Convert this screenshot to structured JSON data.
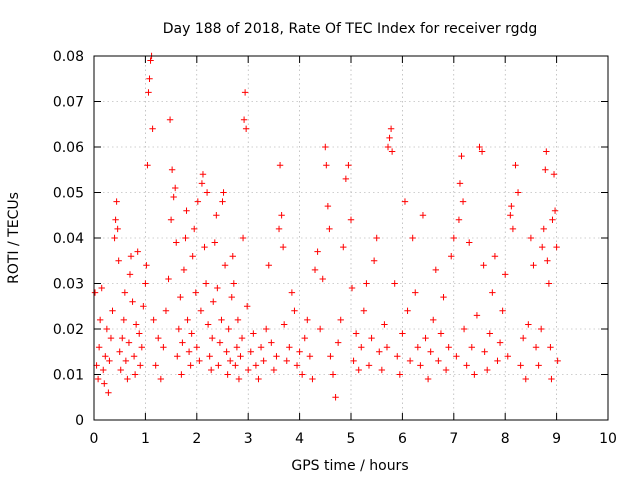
{
  "chart_data": {
    "type": "scatter",
    "title": "Day 188 of 2018, Rate Of TEC Index for receiver rgdg",
    "xlabel": "GPS time / hours",
    "ylabel": "ROTI / TECUs",
    "xlim": [
      0,
      10
    ],
    "ylim": [
      0,
      0.08
    ],
    "x_ticks": [
      0,
      1,
      2,
      3,
      4,
      5,
      6,
      7,
      8,
      9,
      10
    ],
    "y_ticks": [
      "0",
      "0.01",
      "0.02",
      "0.03",
      "0.04",
      "0.05",
      "0.06",
      "0.07",
      "0.08"
    ],
    "grid": true,
    "marker": "+",
    "color": "#ff0000",
    "series": [
      {
        "name": "ROTI",
        "points": [
          [
            0.02,
            0.028
          ],
          [
            0.05,
            0.012
          ],
          [
            0.08,
            0.009
          ],
          [
            0.1,
            0.016
          ],
          [
            0.12,
            0.022
          ],
          [
            0.15,
            0.029
          ],
          [
            0.18,
            0.011
          ],
          [
            0.2,
            0.008
          ],
          [
            0.22,
            0.014
          ],
          [
            0.25,
            0.02
          ],
          [
            0.28,
            0.006
          ],
          [
            0.3,
            0.013
          ],
          [
            0.33,
            0.018
          ],
          [
            0.36,
            0.024
          ],
          [
            0.4,
            0.04
          ],
          [
            0.42,
            0.044
          ],
          [
            0.44,
            0.048
          ],
          [
            0.46,
            0.042
          ],
          [
            0.48,
            0.035
          ],
          [
            0.5,
            0.015
          ],
          [
            0.52,
            0.011
          ],
          [
            0.55,
            0.018
          ],
          [
            0.58,
            0.022
          ],
          [
            0.6,
            0.028
          ],
          [
            0.62,
            0.013
          ],
          [
            0.65,
            0.009
          ],
          [
            0.68,
            0.017
          ],
          [
            0.7,
            0.032
          ],
          [
            0.72,
            0.036
          ],
          [
            0.75,
            0.026
          ],
          [
            0.78,
            0.014
          ],
          [
            0.8,
            0.01
          ],
          [
            0.82,
            0.021
          ],
          [
            0.85,
            0.037
          ],
          [
            0.88,
            0.019
          ],
          [
            0.9,
            0.012
          ],
          [
            0.93,
            0.016
          ],
          [
            0.96,
            0.025
          ],
          [
            1.0,
            0.03
          ],
          [
            1.02,
            0.034
          ],
          [
            1.04,
            0.056
          ],
          [
            1.06,
            0.072
          ],
          [
            1.08,
            0.075
          ],
          [
            1.1,
            0.079
          ],
          [
            1.12,
            0.08
          ],
          [
            1.14,
            0.064
          ],
          [
            1.16,
            0.022
          ],
          [
            1.2,
            0.012
          ],
          [
            1.25,
            0.018
          ],
          [
            1.3,
            0.009
          ],
          [
            1.35,
            0.016
          ],
          [
            1.4,
            0.024
          ],
          [
            1.45,
            0.031
          ],
          [
            1.48,
            0.066
          ],
          [
            1.5,
            0.044
          ],
          [
            1.52,
            0.055
          ],
          [
            1.55,
            0.049
          ],
          [
            1.58,
            0.051
          ],
          [
            1.6,
            0.039
          ],
          [
            1.62,
            0.014
          ],
          [
            1.65,
            0.02
          ],
          [
            1.68,
            0.027
          ],
          [
            1.7,
            0.01
          ],
          [
            1.72,
            0.017
          ],
          [
            1.75,
            0.033
          ],
          [
            1.78,
            0.04
          ],
          [
            1.8,
            0.046
          ],
          [
            1.82,
            0.022
          ],
          [
            1.85,
            0.015
          ],
          [
            1.88,
            0.012
          ],
          [
            1.9,
            0.019
          ],
          [
            1.92,
            0.036
          ],
          [
            1.95,
            0.042
          ],
          [
            1.98,
            0.028
          ],
          [
            2.0,
            0.016
          ],
          [
            2.02,
            0.048
          ],
          [
            2.05,
            0.013
          ],
          [
            2.08,
            0.024
          ],
          [
            2.1,
            0.052
          ],
          [
            2.12,
            0.054
          ],
          [
            2.15,
            0.038
          ],
          [
            2.18,
            0.03
          ],
          [
            2.2,
            0.05
          ],
          [
            2.22,
            0.021
          ],
          [
            2.25,
            0.014
          ],
          [
            2.28,
            0.011
          ],
          [
            2.3,
            0.018
          ],
          [
            2.32,
            0.026
          ],
          [
            2.35,
            0.039
          ],
          [
            2.38,
            0.045
          ],
          [
            2.4,
            0.029
          ],
          [
            2.42,
            0.012
          ],
          [
            2.45,
            0.017
          ],
          [
            2.48,
            0.022
          ],
          [
            2.5,
            0.048
          ],
          [
            2.52,
            0.05
          ],
          [
            2.55,
            0.034
          ],
          [
            2.58,
            0.015
          ],
          [
            2.6,
            0.01
          ],
          [
            2.62,
            0.02
          ],
          [
            2.65,
            0.013
          ],
          [
            2.68,
            0.027
          ],
          [
            2.7,
            0.036
          ],
          [
            2.72,
            0.03
          ],
          [
            2.75,
            0.012
          ],
          [
            2.78,
            0.016
          ],
          [
            2.8,
            0.022
          ],
          [
            2.82,
            0.009
          ],
          [
            2.85,
            0.014
          ],
          [
            2.88,
            0.018
          ],
          [
            2.9,
            0.04
          ],
          [
            2.92,
            0.066
          ],
          [
            2.94,
            0.072
          ],
          [
            2.96,
            0.064
          ],
          [
            2.98,
            0.025
          ],
          [
            3.0,
            0.011
          ],
          [
            3.05,
            0.015
          ],
          [
            3.1,
            0.019
          ],
          [
            3.15,
            0.012
          ],
          [
            3.2,
            0.009
          ],
          [
            3.25,
            0.016
          ],
          [
            3.3,
            0.013
          ],
          [
            3.35,
            0.02
          ],
          [
            3.4,
            0.034
          ],
          [
            3.45,
            0.017
          ],
          [
            3.5,
            0.011
          ],
          [
            3.55,
            0.014
          ],
          [
            3.6,
            0.042
          ],
          [
            3.62,
            0.056
          ],
          [
            3.65,
            0.045
          ],
          [
            3.68,
            0.038
          ],
          [
            3.7,
            0.021
          ],
          [
            3.75,
            0.013
          ],
          [
            3.8,
            0.016
          ],
          [
            3.85,
            0.028
          ],
          [
            3.9,
            0.024
          ],
          [
            3.95,
            0.012
          ],
          [
            4.0,
            0.015
          ],
          [
            4.05,
            0.01
          ],
          [
            4.1,
            0.018
          ],
          [
            4.15,
            0.022
          ],
          [
            4.2,
            0.014
          ],
          [
            4.25,
            0.009
          ],
          [
            4.3,
            0.033
          ],
          [
            4.35,
            0.037
          ],
          [
            4.4,
            0.02
          ],
          [
            4.45,
            0.031
          ],
          [
            4.5,
            0.06
          ],
          [
            4.52,
            0.056
          ],
          [
            4.55,
            0.047
          ],
          [
            4.58,
            0.042
          ],
          [
            4.6,
            0.014
          ],
          [
            4.65,
            0.01
          ],
          [
            4.7,
            0.005
          ],
          [
            4.75,
            0.017
          ],
          [
            4.8,
            0.022
          ],
          [
            4.85,
            0.038
          ],
          [
            4.9,
            0.053
          ],
          [
            4.95,
            0.056
          ],
          [
            5.0,
            0.044
          ],
          [
            5.02,
            0.029
          ],
          [
            5.05,
            0.013
          ],
          [
            5.1,
            0.019
          ],
          [
            5.15,
            0.011
          ],
          [
            5.2,
            0.016
          ],
          [
            5.25,
            0.024
          ],
          [
            5.3,
            0.03
          ],
          [
            5.35,
            0.012
          ],
          [
            5.4,
            0.018
          ],
          [
            5.45,
            0.035
          ],
          [
            5.5,
            0.04
          ],
          [
            5.55,
            0.015
          ],
          [
            5.6,
            0.011
          ],
          [
            5.65,
            0.021
          ],
          [
            5.7,
            0.016
          ],
          [
            5.72,
            0.06
          ],
          [
            5.75,
            0.062
          ],
          [
            5.78,
            0.064
          ],
          [
            5.8,
            0.059
          ],
          [
            5.85,
            0.03
          ],
          [
            5.9,
            0.014
          ],
          [
            5.95,
            0.01
          ],
          [
            6.0,
            0.019
          ],
          [
            6.05,
            0.048
          ],
          [
            6.1,
            0.024
          ],
          [
            6.15,
            0.013
          ],
          [
            6.2,
            0.04
          ],
          [
            6.25,
            0.028
          ],
          [
            6.3,
            0.016
          ],
          [
            6.35,
            0.012
          ],
          [
            6.4,
            0.045
          ],
          [
            6.45,
            0.018
          ],
          [
            6.5,
            0.009
          ],
          [
            6.55,
            0.015
          ],
          [
            6.6,
            0.022
          ],
          [
            6.65,
            0.033
          ],
          [
            6.7,
            0.013
          ],
          [
            6.75,
            0.019
          ],
          [
            6.8,
            0.027
          ],
          [
            6.85,
            0.011
          ],
          [
            6.9,
            0.016
          ],
          [
            6.95,
            0.036
          ],
          [
            7.0,
            0.04
          ],
          [
            7.05,
            0.014
          ],
          [
            7.1,
            0.044
          ],
          [
            7.12,
            0.052
          ],
          [
            7.15,
            0.058
          ],
          [
            7.18,
            0.048
          ],
          [
            7.2,
            0.02
          ],
          [
            7.25,
            0.012
          ],
          [
            7.3,
            0.039
          ],
          [
            7.35,
            0.016
          ],
          [
            7.4,
            0.01
          ],
          [
            7.45,
            0.023
          ],
          [
            7.5,
            0.06
          ],
          [
            7.55,
            0.059
          ],
          [
            7.58,
            0.034
          ],
          [
            7.6,
            0.015
          ],
          [
            7.65,
            0.011
          ],
          [
            7.7,
            0.019
          ],
          [
            7.75,
            0.028
          ],
          [
            7.8,
            0.036
          ],
          [
            7.85,
            0.013
          ],
          [
            7.9,
            0.017
          ],
          [
            7.95,
            0.024
          ],
          [
            8.0,
            0.032
          ],
          [
            8.05,
            0.014
          ],
          [
            8.1,
            0.045
          ],
          [
            8.12,
            0.047
          ],
          [
            8.15,
            0.042
          ],
          [
            8.2,
            0.056
          ],
          [
            8.25,
            0.05
          ],
          [
            8.3,
            0.012
          ],
          [
            8.35,
            0.018
          ],
          [
            8.4,
            0.009
          ],
          [
            8.45,
            0.021
          ],
          [
            8.5,
            0.04
          ],
          [
            8.55,
            0.034
          ],
          [
            8.6,
            0.016
          ],
          [
            8.65,
            0.012
          ],
          [
            8.7,
            0.02
          ],
          [
            8.72,
            0.038
          ],
          [
            8.75,
            0.042
          ],
          [
            8.78,
            0.055
          ],
          [
            8.8,
            0.059
          ],
          [
            8.82,
            0.035
          ],
          [
            8.85,
            0.03
          ],
          [
            8.88,
            0.016
          ],
          [
            8.9,
            0.009
          ],
          [
            8.92,
            0.044
          ],
          [
            8.95,
            0.054
          ],
          [
            8.97,
            0.046
          ],
          [
            9.0,
            0.038
          ],
          [
            9.02,
            0.013
          ]
        ]
      }
    ]
  }
}
